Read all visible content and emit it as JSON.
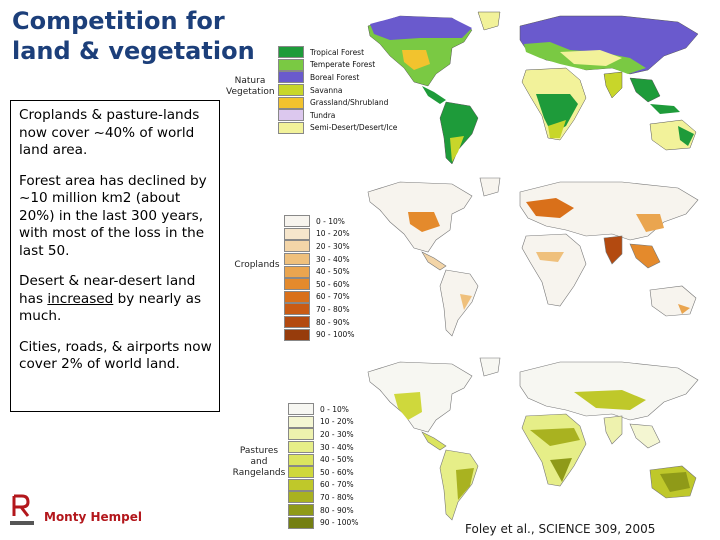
{
  "slide": {
    "title_line1": "Competition for",
    "title_line2": "land & vegetation",
    "paragraphs": {
      "p1": "Croplands & pasture-lands now cover ~40% of world land area.",
      "p2": "Forest area has declined by ~10 million km2 (about 20%) in the last 300 years, with most of the loss in the last 50.",
      "p3_before": "Desert & near-desert land has ",
      "p3_underlined": "increased",
      "p3_after": " by nearly as much.",
      "p4": "Cities, roads, & airports now cover 2% of world land."
    },
    "author": "Monty Hempel",
    "citation": "Foley et al., SCIENCE 309, 2005"
  },
  "panels": {
    "vegetation": {
      "label_line1": "Natura",
      "label_line2": "Vegetation",
      "legend": [
        {
          "label": "Tropical Forest",
          "color": "#1e9b3a"
        },
        {
          "label": "Temperate Forest",
          "color": "#7ac943"
        },
        {
          "label": "Boreal Forest",
          "color": "#6a5acd"
        },
        {
          "label": "Savanna",
          "color": "#c8d62a"
        },
        {
          "label": "Grassland/Shrubland",
          "color": "#f2c32e"
        },
        {
          "label": "Tundra",
          "color": "#dcc8ee"
        },
        {
          "label": "Semi-Desert/Desert/Ice",
          "color": "#f2f29a"
        }
      ]
    },
    "croplands": {
      "label": "Croplands",
      "legend": [
        {
          "label": "0 - 10%",
          "color": "#f7f4ee"
        },
        {
          "label": "10 - 20%",
          "color": "#f6e6cc"
        },
        {
          "label": "20 - 30%",
          "color": "#f3d5a8"
        },
        {
          "label": "30 - 40%",
          "color": "#efc07c"
        },
        {
          "label": "40 - 50%",
          "color": "#eaa54f"
        },
        {
          "label": "50 - 60%",
          "color": "#e48a2c"
        },
        {
          "label": "60 - 70%",
          "color": "#d9701a"
        },
        {
          "label": "70 - 80%",
          "color": "#c95b14"
        },
        {
          "label": "80 - 90%",
          "color": "#b34a10"
        },
        {
          "label": "90 - 100%",
          "color": "#973c0c"
        }
      ]
    },
    "pastures": {
      "label_line1": "Pastures",
      "label_line2": "and",
      "label_line3": "Rangelands",
      "legend": [
        {
          "label": "0 - 10%",
          "color": "#f7f7f2"
        },
        {
          "label": "10 - 20%",
          "color": "#f4f6d2"
        },
        {
          "label": "20 - 30%",
          "color": "#eef2ae"
        },
        {
          "label": "30 - 40%",
          "color": "#e6ee88"
        },
        {
          "label": "40 - 50%",
          "color": "#dbe45f"
        },
        {
          "label": "50 - 60%",
          "color": "#cfd83c"
        },
        {
          "label": "60 - 70%",
          "color": "#bfc82a"
        },
        {
          "label": "70 - 80%",
          "color": "#a9b220"
        },
        {
          "label": "80 - 90%",
          "color": "#8f9a18"
        },
        {
          "label": "90 - 100%",
          "color": "#747f12"
        }
      ]
    }
  }
}
